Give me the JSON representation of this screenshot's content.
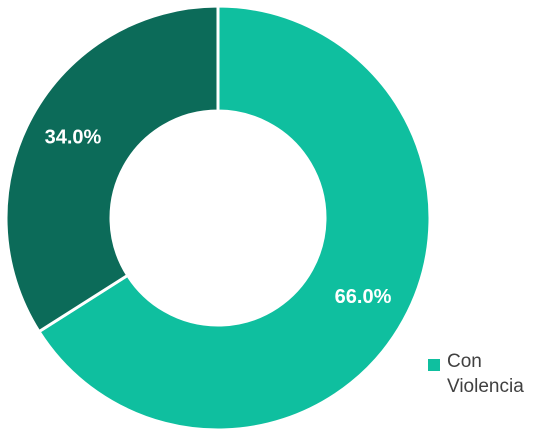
{
  "chart_data": {
    "type": "pie",
    "donut": true,
    "slices": [
      {
        "label": "Con Violencia",
        "value": 66.0,
        "value_label": "66.0%",
        "color": "#0fbf9f"
      },
      {
        "label": "",
        "value": 34.0,
        "value_label": "34.0%",
        "color": "#0c6b59"
      }
    ],
    "legend": {
      "position": "bottom-right",
      "entries": [
        "Con Violencia"
      ]
    }
  }
}
